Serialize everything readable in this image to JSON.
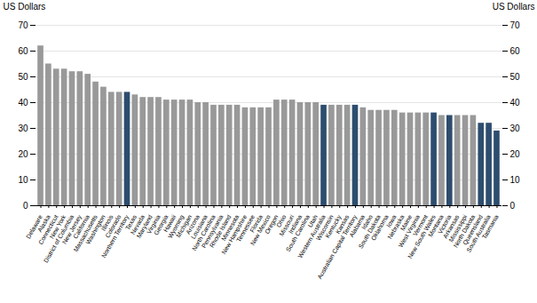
{
  "chart_data": {
    "type": "bar",
    "categories": [
      "Delaware",
      "Alaska",
      "Connecticut",
      "New York",
      "District of Columbia",
      "New Jersey",
      "California",
      "Massachusetts",
      "Washington",
      "Illinois",
      "Colorado",
      "Northern Territory",
      "Texas",
      "Nevada",
      "Maryland",
      "Virginia",
      "Georgia",
      "Hawaii",
      "Wyoming",
      "Michigan",
      "Arizona",
      "Louisiana",
      "North Carolina",
      "Pennsylvania",
      "Rhode Island",
      "Minnesota",
      "New Hampshire",
      "Tennessee",
      "Florida",
      "New Mexico",
      "Oregon",
      "Ohio",
      "Missouri",
      "Indiana",
      "South Carolina",
      "Utah",
      "Western Australia",
      "Wisconsin",
      "Kentucky",
      "Kansas",
      "Australian Capital Territory",
      "Alabama",
      "Idaho",
      "South Dakota",
      "Oklahoma",
      "Iowa",
      "Nebraska",
      "Maine",
      "West Virginia",
      "Vermont",
      "New South Wales",
      "Montana",
      "Victoria",
      "Arkansas",
      "Mississippi",
      "North Dakota",
      "Queensland",
      "South Australia",
      "Tasmania"
    ],
    "values": [
      62,
      55,
      53,
      53,
      52,
      52,
      51,
      48,
      46,
      44,
      44,
      44,
      43,
      42,
      42,
      42,
      41,
      41,
      41,
      41,
      40,
      40,
      39,
      39,
      39,
      39,
      38,
      38,
      38,
      38,
      41,
      41,
      41,
      40,
      40,
      40,
      39,
      39,
      39,
      39,
      39,
      38,
      37,
      37,
      37,
      37,
      36,
      36,
      36,
      36,
      36,
      35,
      35,
      35,
      35,
      35,
      32,
      32,
      29
    ],
    "colors": [
      "#999999",
      "#999999",
      "#999999",
      "#999999",
      "#999999",
      "#999999",
      "#999999",
      "#999999",
      "#999999",
      "#999999",
      "#999999",
      "#2d4d6e",
      "#999999",
      "#999999",
      "#999999",
      "#999999",
      "#999999",
      "#999999",
      "#999999",
      "#999999",
      "#999999",
      "#999999",
      "#999999",
      "#999999",
      "#999999",
      "#999999",
      "#999999",
      "#999999",
      "#999999",
      "#999999",
      "#999999",
      "#999999",
      "#999999",
      "#999999",
      "#999999",
      "#999999",
      "#2d4d6e",
      "#999999",
      "#999999",
      "#999999",
      "#2d4d6e",
      "#999999",
      "#999999",
      "#999999",
      "#999999",
      "#999999",
      "#999999",
      "#999999",
      "#999999",
      "#999999",
      "#2d4d6e",
      "#999999",
      "#2d4d6e",
      "#999999",
      "#999999",
      "#999999",
      "#2d4d6e",
      "#2d4d6e",
      "#2d4d6e"
    ],
    "y_label": "US Dollars",
    "y2_label": "US Dollars",
    "ylim": [
      0,
      70
    ],
    "yticks": [
      0,
      10,
      20,
      30,
      40,
      50,
      60,
      70
    ],
    "y2lim": [
      0,
      70
    ],
    "y2ticks": [
      0,
      10,
      20,
      30,
      40,
      50,
      60,
      70
    ],
    "grid": true
  }
}
